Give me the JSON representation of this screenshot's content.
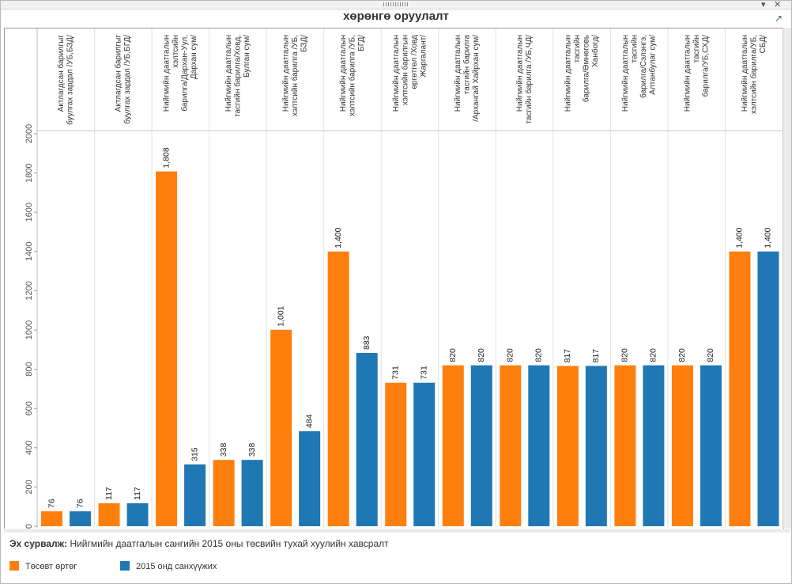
{
  "window": {
    "title": "хөрөнгө оруулалт",
    "popout_icon": "popout-icon",
    "menu_icon": "dropdown-arrow-icon",
    "close_icon": "close-icon"
  },
  "source": {
    "label": "Эх сурвалж:",
    "text": "Нийгмийн даатгалын сангийн 2015 оны төсвийн тухай хуулийн хавсралт"
  },
  "colors": {
    "planned": "#ff7f0e",
    "funded": "#1f77b4"
  },
  "chart_data": {
    "type": "bar",
    "title": "хөрөнгө оруулалт",
    "ylim": [
      0,
      2000
    ],
    "yticks": [
      0,
      200,
      400,
      600,
      800,
      1000,
      1200,
      1400,
      1600,
      1800,
      2000
    ],
    "grid": false,
    "legend_position": "bottom-left",
    "categories": [
      [
        "Актлагдсан барилгыг",
        "буулгах зардал /УБ,БЗД/"
      ],
      [
        "Актлагдсан барилгыг",
        "буулгах зардал /УБ,БГД/"
      ],
      [
        "Нийгмийн даатгалын",
        "хэлтсийн",
        "барилга/Дархан-Уул,",
        "Дархан сум/"
      ],
      [
        "Нийгмийн даатгалын",
        "тасгийн барилга/Ховд,",
        "Булган сум/"
      ],
      [
        "Нийгмийн даатгалын",
        "хэлтсийн барилга /УБ,",
        "БЗД/"
      ],
      [
        "Нийгмийн даатгалын",
        "хэлтсийн барилга /УБ,",
        "БГД/"
      ],
      [
        "Нийгмийн даатгалын",
        "хэлтсийн барилгын",
        "өргөтгөл /Ховд",
        "Жаргалант/"
      ],
      [
        "Нийгмийн даатгалын",
        "тасгийн барилга",
        "/Архангай Хайрхан сум/"
      ],
      [
        "Нийгмийн даатгалын",
        "тасгийн барилга /УБ,ЧД/"
      ],
      [
        "Нийгмийн даатгалын",
        "тасгийн",
        "барилга/Өмнөговь",
        "Ханбогд/"
      ],
      [
        "Нийгмийн даатгалын",
        "тасгийн",
        "барилга/Сэлэнгэ,",
        "Алтанбулаг сум/"
      ],
      [
        "Нийгмийн даатгалын",
        "тасгийн",
        "барилга/УБ,СХД/"
      ],
      [
        "Нийгмийн даатгалын",
        "хэлтсийн барилга/УБ,",
        "СБД/"
      ]
    ],
    "series": [
      {
        "name": "Төсөвт өртөг",
        "color": "#ff7f0e",
        "values": [
          76,
          117,
          1808,
          338,
          1001,
          1400,
          731,
          820,
          820,
          817,
          820,
          820,
          1400
        ],
        "labels": [
          "76",
          "117",
          "1,808",
          "338",
          "1,001",
          "1,400",
          "731",
          "820",
          "820",
          "817",
          "820",
          "820",
          "1,400"
        ]
      },
      {
        "name": "2015 онд санхүүжих",
        "color": "#1f77b4",
        "values": [
          76,
          117,
          315,
          338,
          484,
          883,
          731,
          820,
          820,
          817,
          820,
          820,
          1400
        ],
        "labels": [
          "76",
          "117",
          "315",
          "338",
          "484",
          "883",
          "731",
          "820",
          "820",
          "817",
          "820",
          "820",
          "1,400"
        ]
      }
    ]
  }
}
